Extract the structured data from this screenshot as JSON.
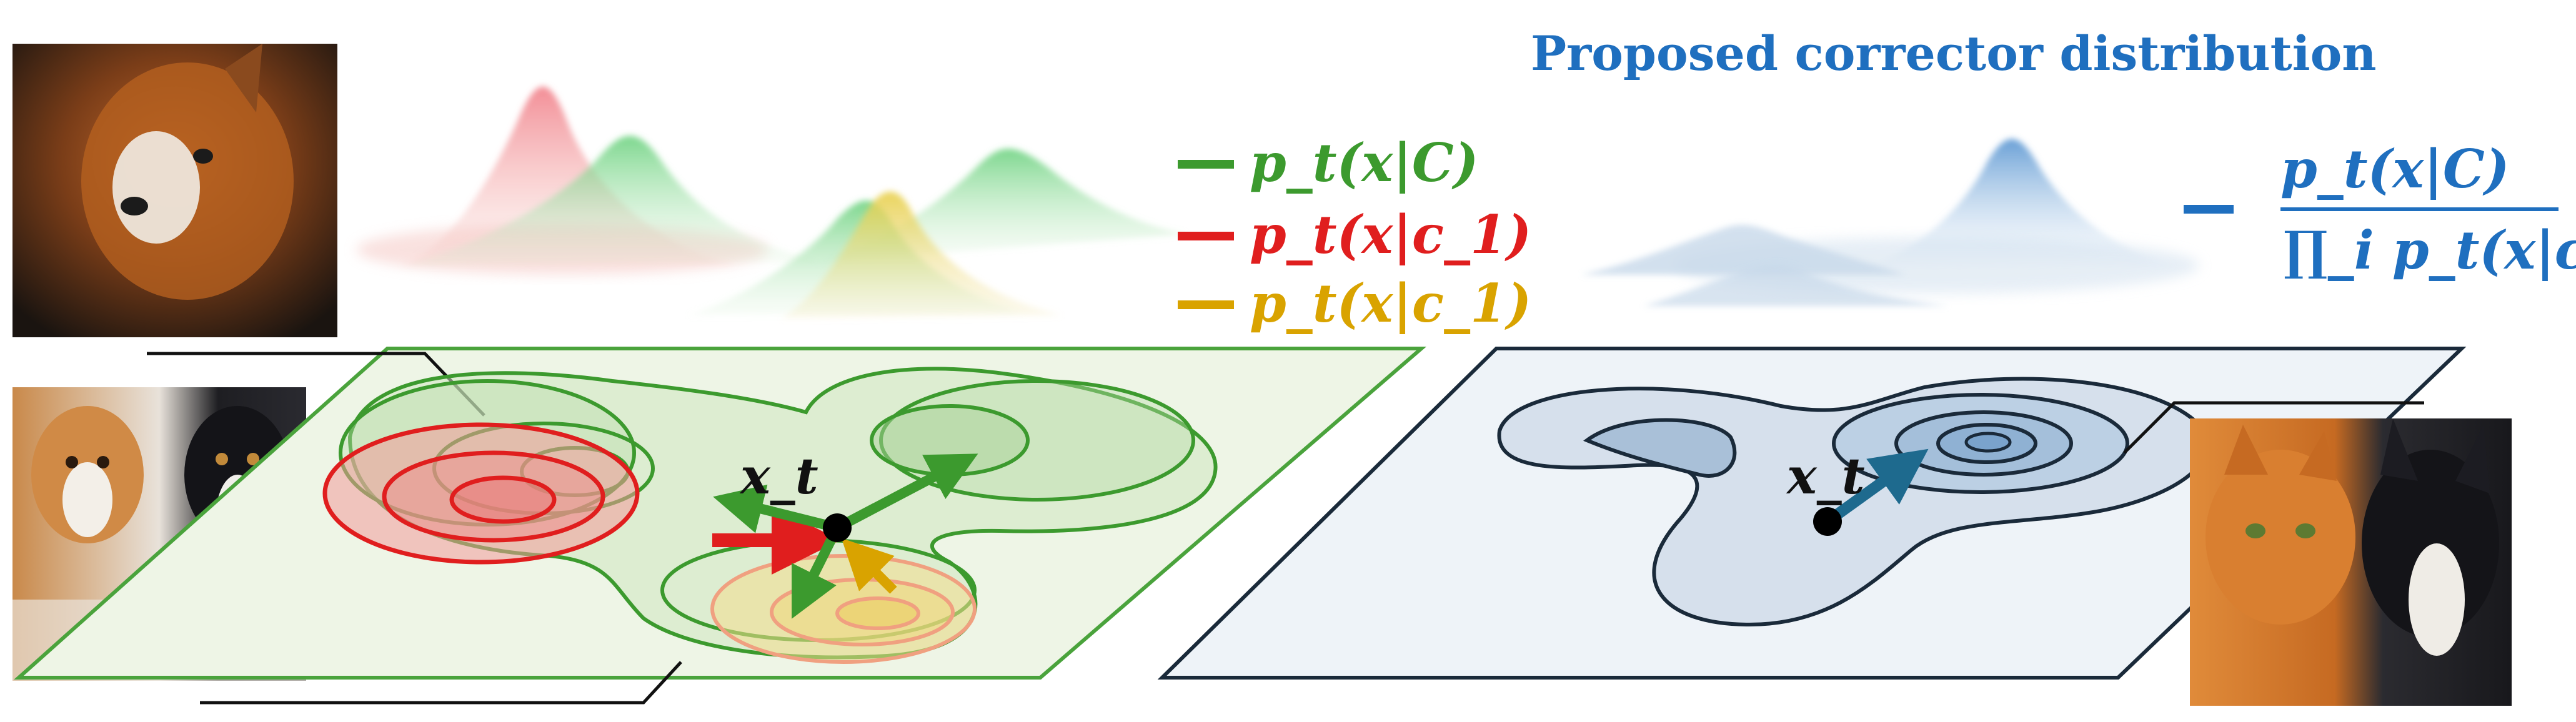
{
  "title": "Proposed corrector distribution",
  "legend": [
    {
      "label": "p_t(x|C)",
      "color": "#3c9a2e"
    },
    {
      "label": "p_t(x|c_1)",
      "color": "#e01e1e"
    },
    {
      "label": "p_t(x|c_1)",
      "color": "#d9a300"
    }
  ],
  "point_label": "x_t",
  "formula": {
    "numerator": "p_t(x|C)",
    "denominator": "∏_i p_t(x|c_i)",
    "color": "#1f6fbf"
  },
  "colors": {
    "green": "#3c9a2e",
    "red": "#e01e1e",
    "yellow": "#d9a300",
    "blue": "#1f6fbf",
    "arrow_blue": "#1e6a8e"
  },
  "photos": [
    {
      "name": "cat-dog-portrait-photo"
    },
    {
      "name": "two-dogs-photo"
    },
    {
      "name": "cat-and-dog-photo"
    }
  ]
}
